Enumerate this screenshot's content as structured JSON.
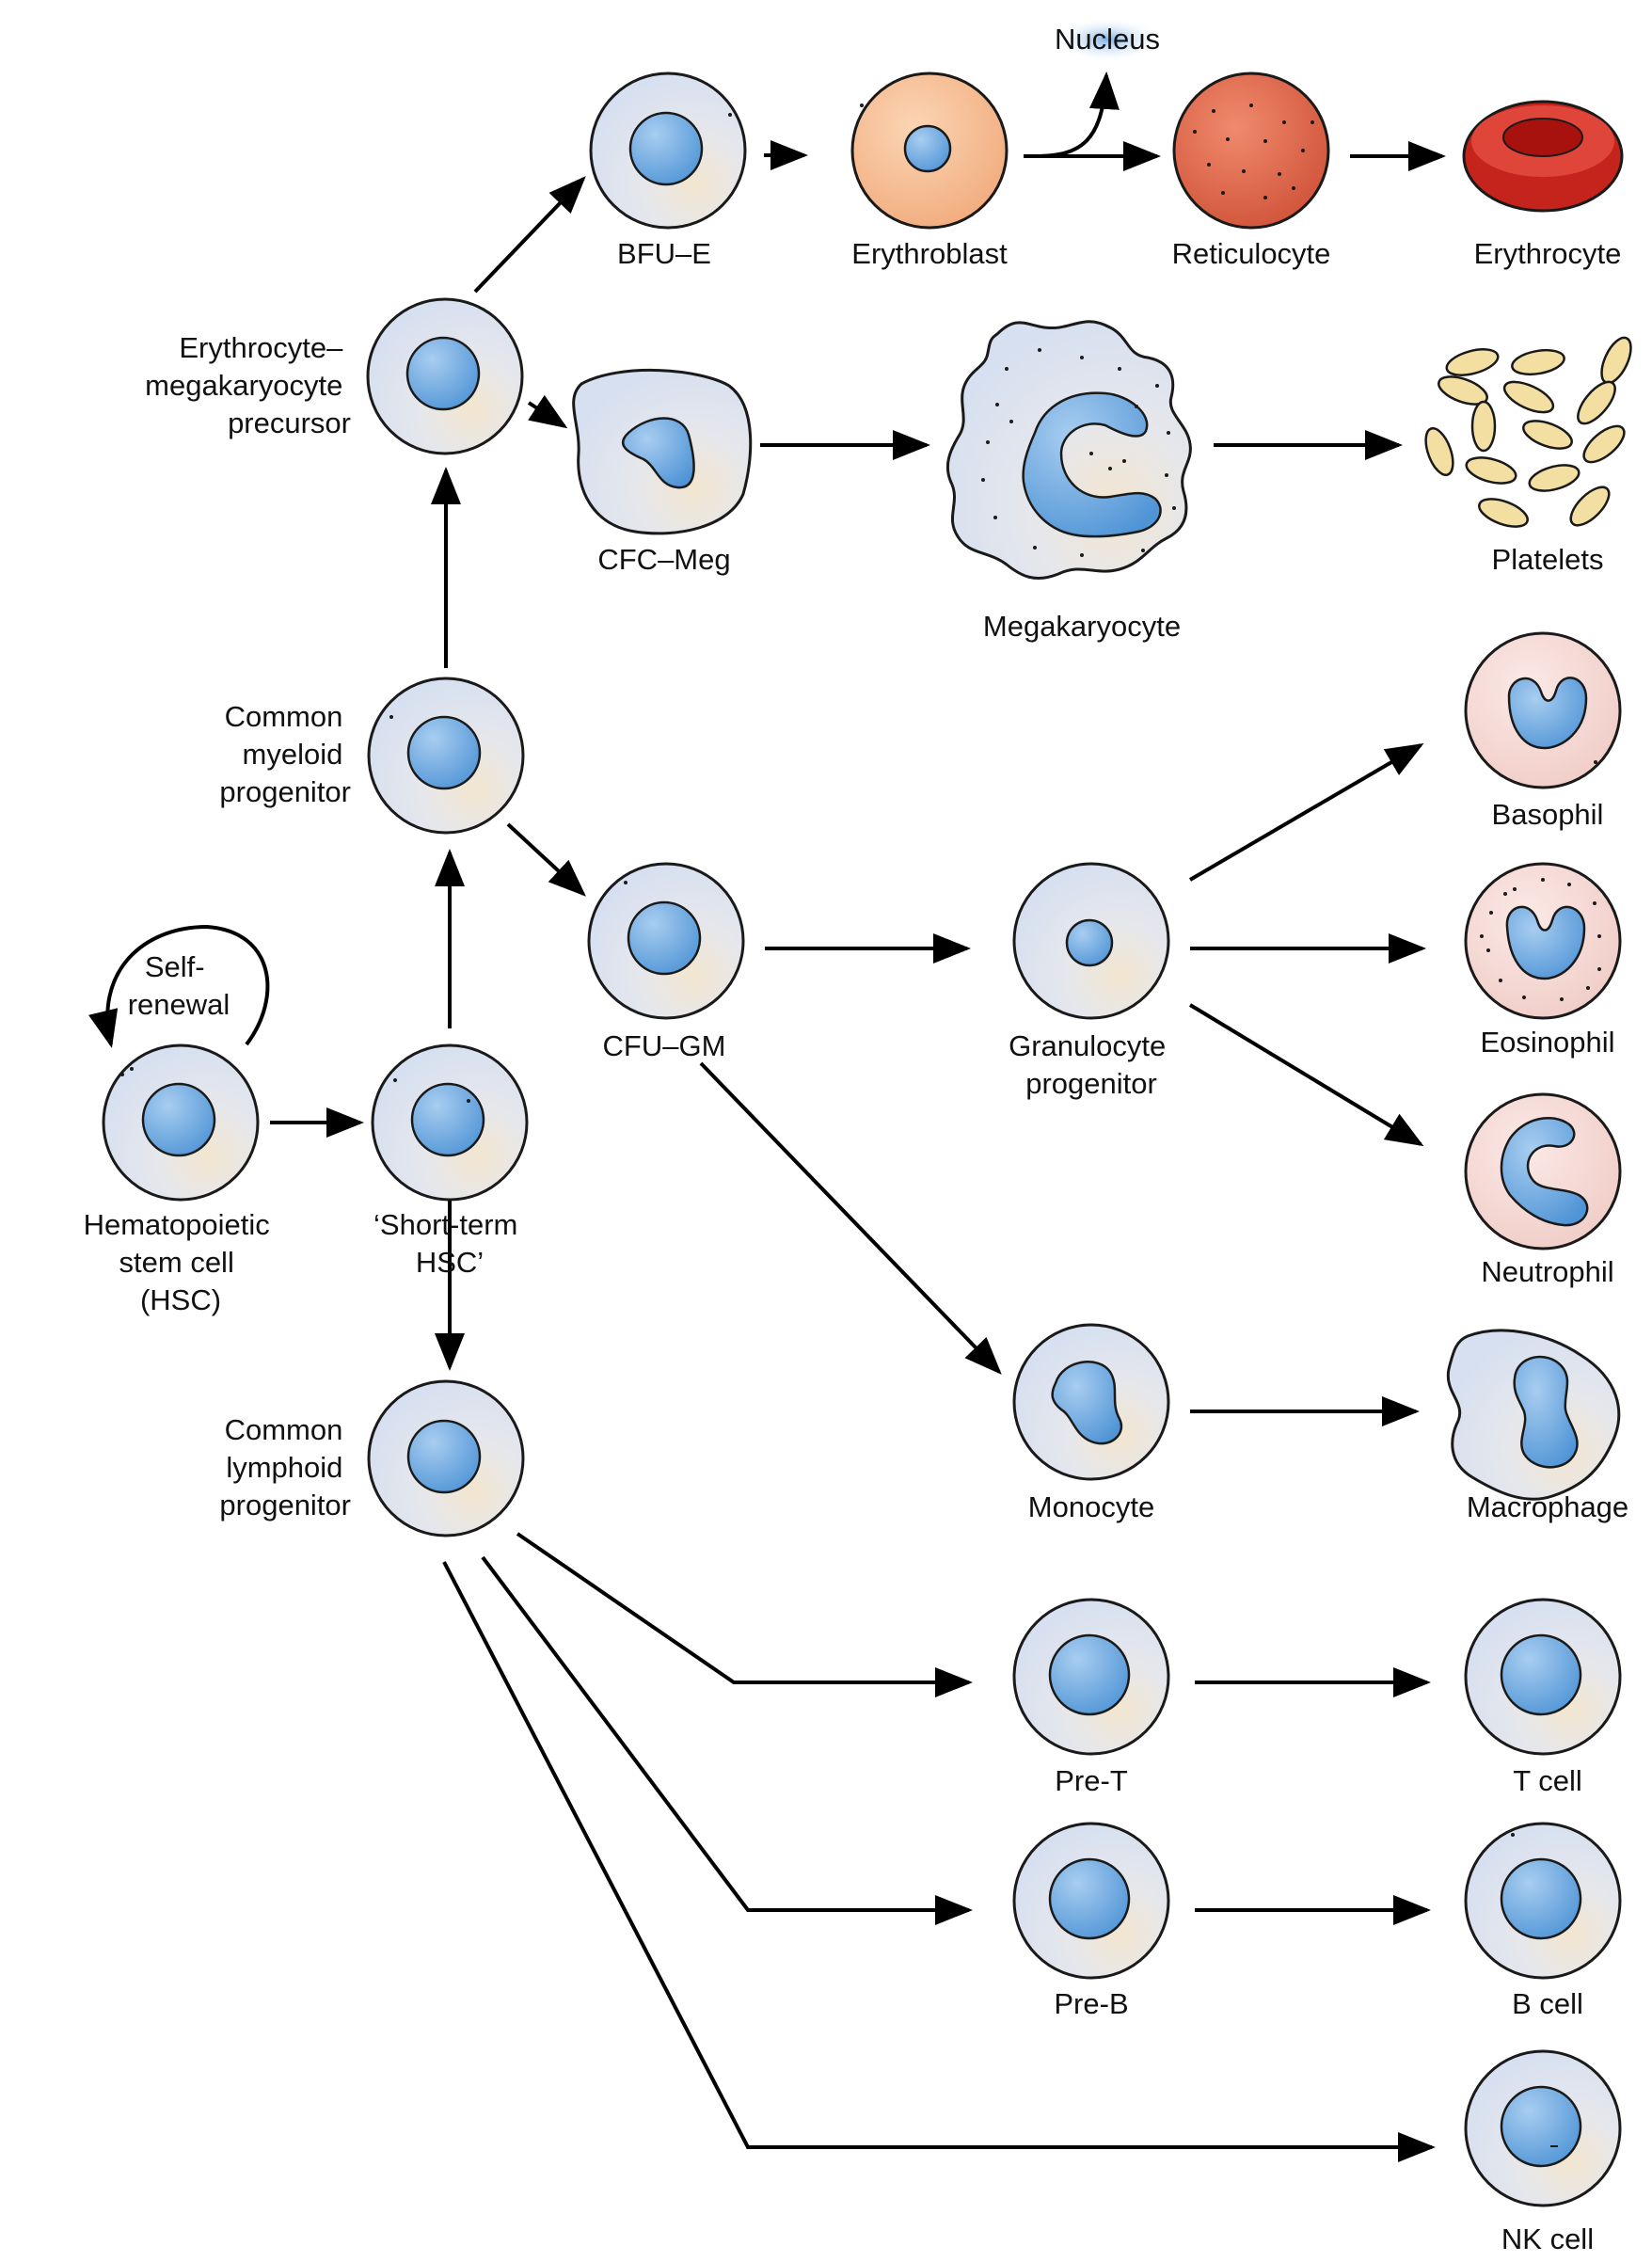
{
  "labels": {
    "nucleus": "Nucleus",
    "bfu_e": "BFU–E",
    "erythroblast": "Erythroblast",
    "reticulocyte": "Reticulocyte",
    "erythrocyte": "Erythrocyte",
    "emp": [
      "Erythrocyte–",
      "megakaryocyte",
      "precursor"
    ],
    "cfc_meg": "CFC–Meg",
    "megakaryocyte": "Megakaryocyte",
    "platelets": "Platelets",
    "cmp": [
      "Common",
      "myeloid",
      "progenitor"
    ],
    "basophil": "Basophil",
    "cfu_gm": "CFU–GM",
    "granulocyte_progenitor": [
      "Granulocyte",
      "progenitor"
    ],
    "eosinophil": "Eosinophil",
    "self_renewal": [
      "Self-",
      "renewal"
    ],
    "hsc": [
      "Hematopoietic",
      "stem cell",
      "(HSC)"
    ],
    "st_hsc": [
      "‘Short-term",
      "HSC’"
    ],
    "neutrophil": "Neutrophil",
    "clp": [
      "Common",
      "lymphoid",
      "progenitor"
    ],
    "monocyte": "Monocyte",
    "macrophage": "Macrophage",
    "pre_t": "Pre-T",
    "t_cell": "T cell",
    "pre_b": "Pre-B",
    "b_cell": "B cell",
    "nk_cell": "NK cell"
  },
  "colors": {
    "cell_fill": "#e3e9f4",
    "cell_warm": "#efe2cc",
    "nucleus": "#5b9ddc",
    "nucleus_light": "#a8cdf0",
    "erythroblast": "#f6b98e",
    "reticulocyte": "#e2644a",
    "erythrocyte": "#d42b22",
    "granulocyte": "#f5d9d6",
    "platelet": "#f4dfa2",
    "nucleus_halo": "#8fb8e8"
  }
}
